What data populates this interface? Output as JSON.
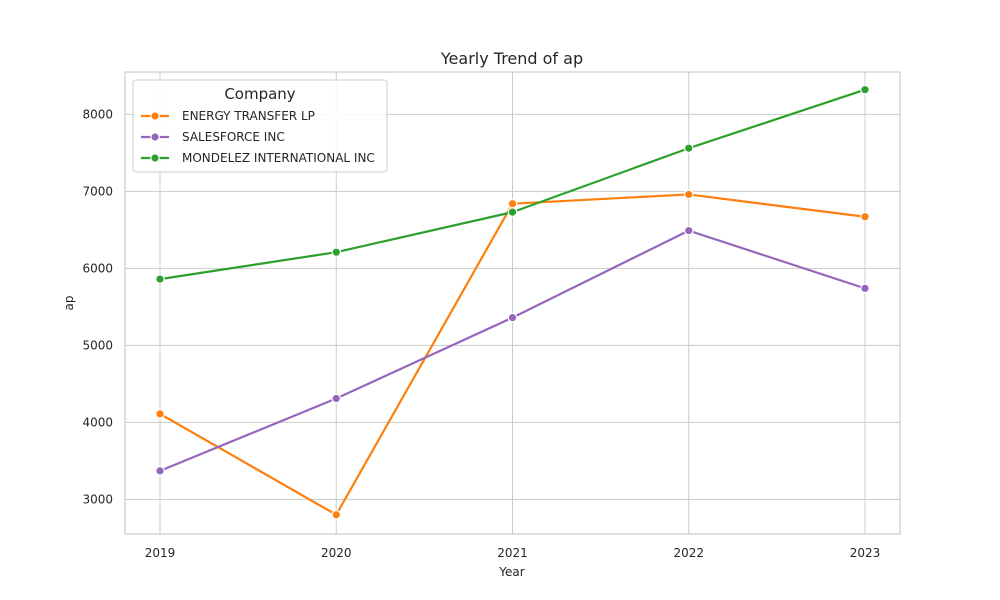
{
  "chart_data": {
    "type": "line",
    "title": "Yearly Trend of ap",
    "xlabel": "Year",
    "ylabel": "ap",
    "x": [
      "2019",
      "2020",
      "2021",
      "2022",
      "2023"
    ],
    "y_ticks": [
      3000,
      4000,
      5000,
      6000,
      7000,
      8000
    ],
    "ylim": [
      2550,
      8550
    ],
    "grid": true,
    "marker": "circle",
    "legend": {
      "title": "Company",
      "placement": "top-left"
    },
    "series": [
      {
        "name": "ENERGY TRANSFER LP",
        "color": "#ff7f0e",
        "values": [
          4110,
          2800,
          6840,
          6960,
          6670
        ]
      },
      {
        "name": "SALESFORCE INC",
        "color": "#9467bd",
        "values": [
          3370,
          4310,
          5360,
          6490,
          5740
        ]
      },
      {
        "name": "MONDELEZ INTERNATIONAL INC",
        "color": "#2ca02c",
        "values": [
          5860,
          6210,
          6730,
          7560,
          8320
        ]
      }
    ]
  }
}
